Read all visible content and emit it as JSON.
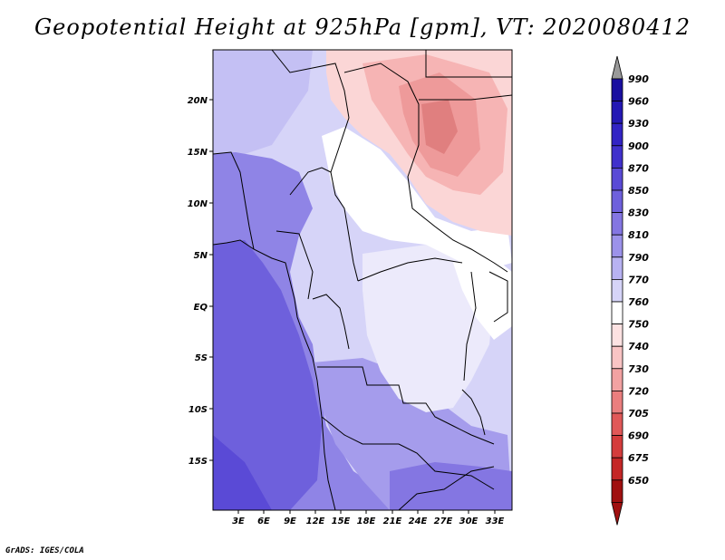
{
  "title": "Geopotential Height at 925hPa [gpm], VT: 2020080412",
  "credit": "GrADS: IGES/COLA",
  "map": {
    "lat_labels": [
      "20N",
      "15N",
      "10N",
      "5N",
      "EQ",
      "5S",
      "10S",
      "15S"
    ],
    "lon_labels": [
      "3E",
      "6E",
      "9E",
      "12E",
      "15E",
      "18E",
      "21E",
      "24E",
      "27E",
      "30E",
      "33E"
    ]
  },
  "colorbar": {
    "levels": [
      "990",
      "960",
      "930",
      "900",
      "870",
      "850",
      "830",
      "810",
      "790",
      "770",
      "760",
      "750",
      "740",
      "730",
      "720",
      "705",
      "690",
      "675",
      "650"
    ],
    "colors": [
      "#1a0fa0",
      "#2418b4",
      "#3223c4",
      "#4030cc",
      "#5a4ad6",
      "#6e60dc",
      "#8476e2",
      "#9c92ea",
      "#b8b2f2",
      "#d6d4f8",
      "#ffffff",
      "#fde2e2",
      "#f9c4c4",
      "#f2a2a2",
      "#ea7e7e",
      "#e05858",
      "#d43c3c",
      "#c42626",
      "#a01010"
    ]
  }
}
